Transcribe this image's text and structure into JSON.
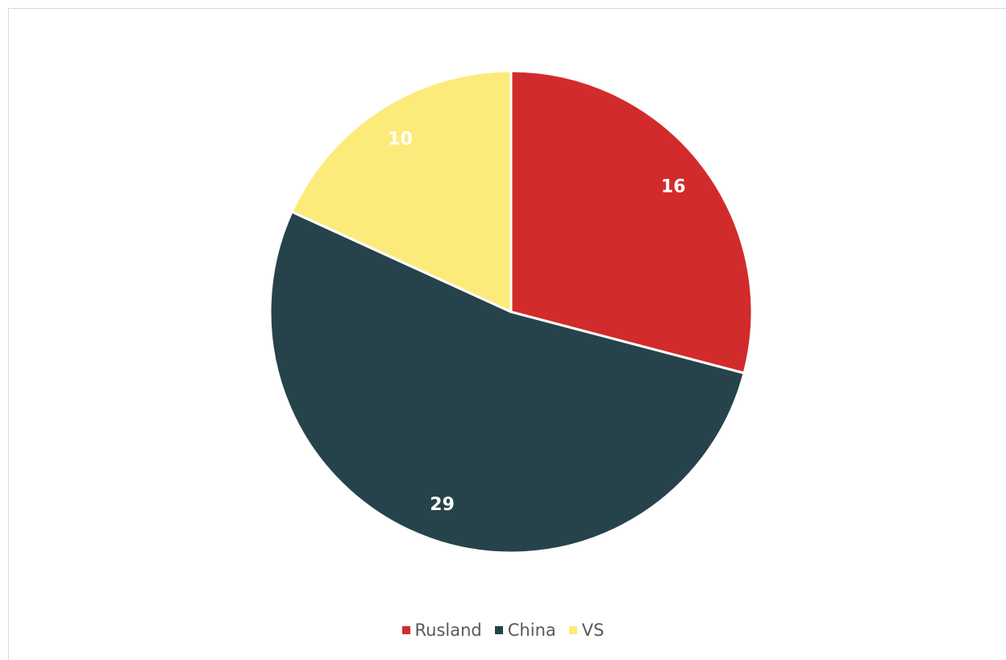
{
  "chart_data": {
    "type": "pie",
    "title": "",
    "start_angle_deg": 0,
    "direction": "clockwise",
    "slices": [
      {
        "label": "Rusland",
        "value": 16,
        "color": "#D22B2B"
      },
      {
        "label": "China",
        "value": 29,
        "color": "#26434B"
      },
      {
        "label": "VS",
        "value": 10,
        "color": "#FCEB7B"
      }
    ],
    "data_labels": true,
    "legend_position": "bottom"
  }
}
